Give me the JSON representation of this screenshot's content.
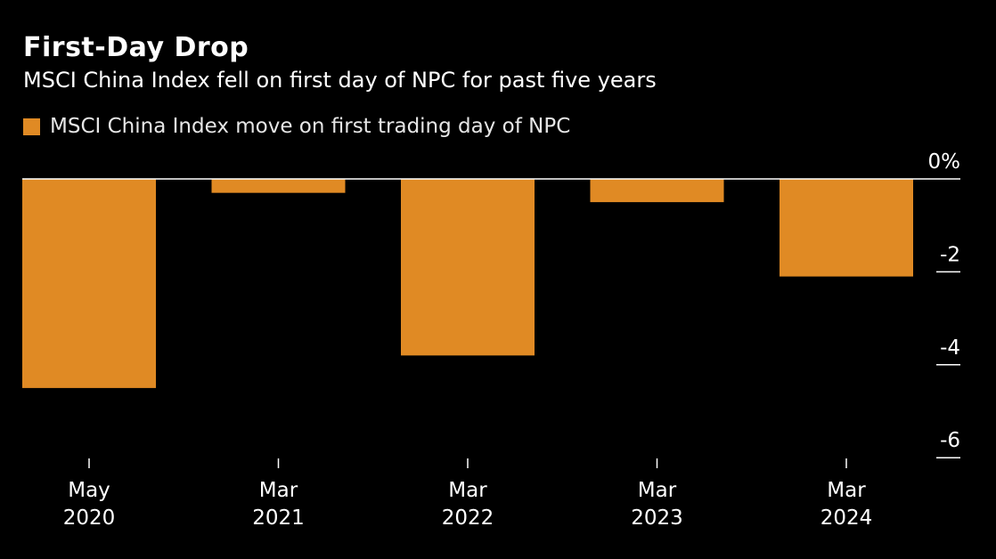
{
  "colors": {
    "background": "#000000",
    "bar": "#e08a24",
    "text": "#ffffff",
    "zero_line": "#ffffff"
  },
  "chart_data": {
    "type": "bar",
    "title": "First-Day Drop",
    "subtitle": "MSCI China Index fell on first day of NPC for past five years",
    "legend_position": "top-left",
    "categories": [
      "May\n2020",
      "Mar\n2021",
      "Mar\n2022",
      "Mar\n2023",
      "Mar\n2024"
    ],
    "series": [
      {
        "name": "MSCI China Index move on first trading day of NPC",
        "values": [
          -4.5,
          -0.3,
          -3.8,
          -0.5,
          -2.1
        ]
      }
    ],
    "yticks": [
      {
        "value": 0,
        "label": "0%"
      },
      {
        "value": -2,
        "label": "-2"
      },
      {
        "value": -4,
        "label": "-4"
      },
      {
        "value": -6,
        "label": "-6"
      }
    ],
    "ylim": [
      -6,
      0
    ],
    "y_axis_side": "right",
    "grid": false
  }
}
